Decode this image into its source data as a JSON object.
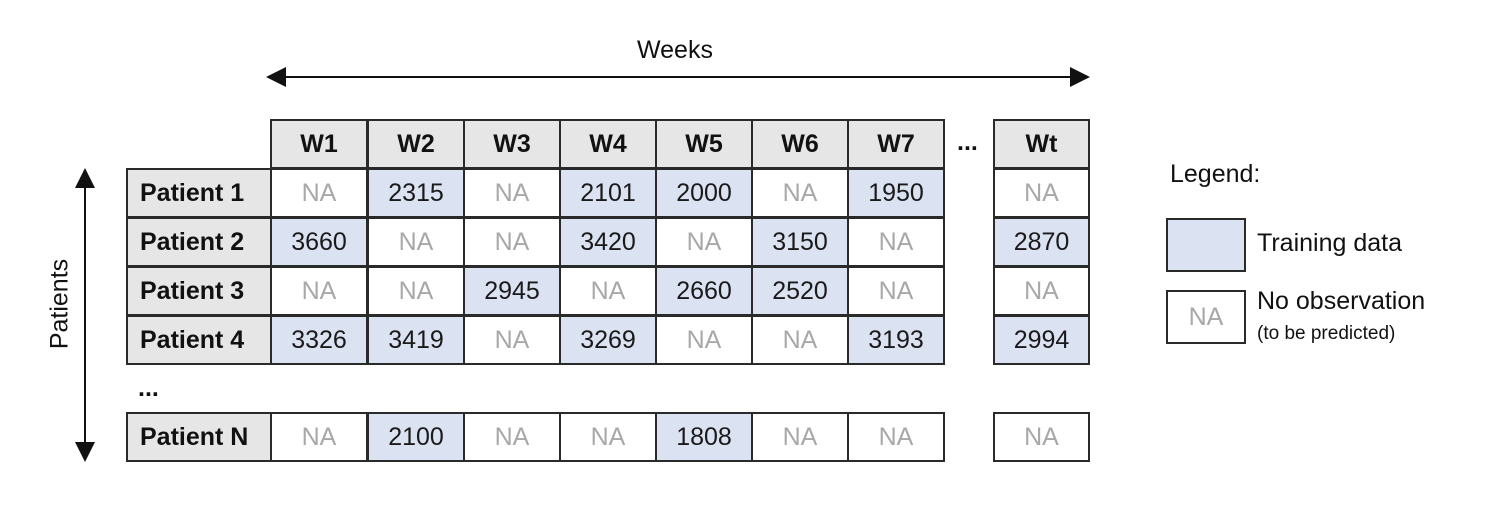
{
  "axes": {
    "weeks_label": "Weeks",
    "patients_label": "Patients"
  },
  "columns": [
    "W1",
    "W2",
    "W3",
    "W4",
    "W5",
    "W6",
    "W7"
  ],
  "last_column": "Wt",
  "column_ellipsis": "...",
  "row_ellipsis": "...",
  "rows": [
    {
      "label": "Patient 1",
      "values": [
        "NA",
        "2315",
        "NA",
        "2101",
        "2000",
        "NA",
        "1950"
      ],
      "last": "NA"
    },
    {
      "label": "Patient 2",
      "values": [
        "3660",
        "NA",
        "NA",
        "3420",
        "NA",
        "3150",
        "NA"
      ],
      "last": "2870"
    },
    {
      "label": "Patient 3",
      "values": [
        "NA",
        "NA",
        "2945",
        "NA",
        "2660",
        "2520",
        "NA"
      ],
      "last": "NA"
    },
    {
      "label": "Patient 4",
      "values": [
        "3326",
        "3419",
        "NA",
        "3269",
        "NA",
        "NA",
        "3193"
      ],
      "last": "2994"
    },
    {
      "label": "Patient N",
      "values": [
        "NA",
        "2100",
        "NA",
        "NA",
        "1808",
        "NA",
        "NA"
      ],
      "last": "NA"
    }
  ],
  "legend": {
    "title": "Legend:",
    "training_label": "Training data",
    "na_swatch_text": "NA",
    "na_label": "No observation",
    "na_sublabel": "(to be predicted)"
  },
  "colors": {
    "training": "#dbe2f1",
    "header": "#e6e6e6",
    "na_text": "#a8a8a8",
    "border": "#2a2a2a"
  }
}
